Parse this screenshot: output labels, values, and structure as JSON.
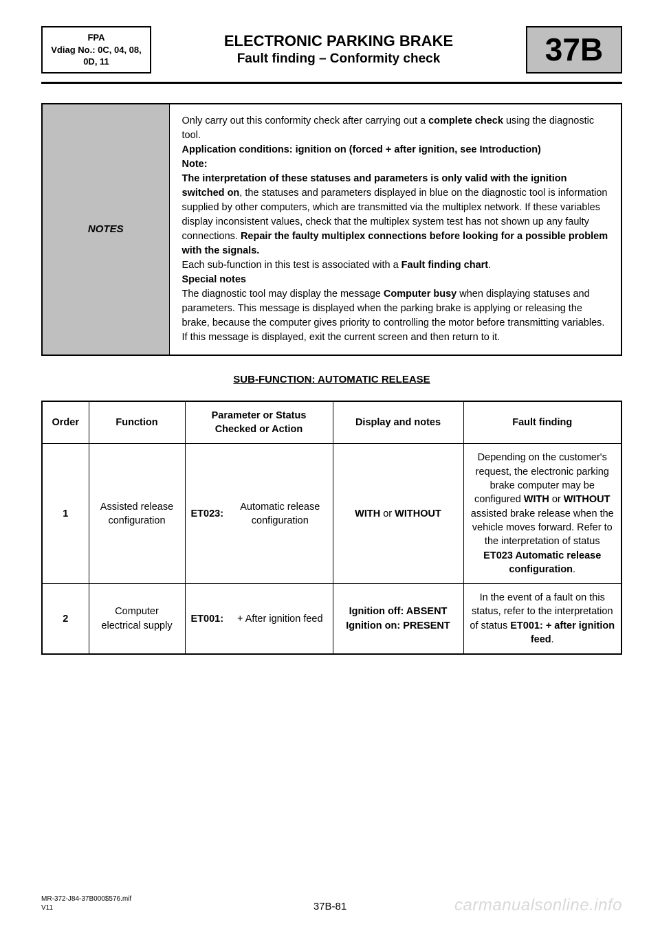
{
  "header": {
    "fpa_line1": "FPA",
    "fpa_line2": "Vdiag No.: 0C, 04, 08,",
    "fpa_line3": "0D, 11",
    "title1": "ELECTRONIC PARKING BRAKE",
    "title2": "Fault finding – Conformity check",
    "section_code": "37B"
  },
  "colors": {
    "background": "#ffffff",
    "text": "#000000",
    "box_fill": "#bfbfbf",
    "border": "#000000",
    "watermark": "#d8d8d8"
  },
  "notes": {
    "label": "NOTES",
    "p1a": "Only carry out this conformity check after carrying out a ",
    "p1b": "complete check",
    "p1c": " using the diagnostic tool.",
    "p2": "Application conditions: ignition on (forced + after ignition, see Introduction)",
    "p3": "Note:",
    "p4a": "The interpretation of these statuses and parameters is only valid with the ignition switched on",
    "p4b": ", the statuses and parameters displayed in blue on the diagnostic tool is information supplied by other computers, which are transmitted via the multiplex network. If these variables display inconsistent values, check that the multiplex system test has not shown up any faulty connections. ",
    "p4c": "Repair the faulty multiplex connections before looking for a possible problem with the signals.",
    "p5a": "Each sub-function in this test is associated with a ",
    "p5b": "Fault finding chart",
    "p5c": ".",
    "p6": "Special notes",
    "p7a": "The diagnostic tool may display the message ",
    "p7b": "Computer busy",
    "p7c": " when displaying statuses and parameters. This message is displayed when the parking brake is applying or releasing the brake, because the computer gives priority to controlling the motor before transmitting variables. If this message is displayed, exit the current screen and then return to it."
  },
  "subfunction": "SUB-FUNCTION: AUTOMATIC RELEASE",
  "table": {
    "headers": {
      "order": "Order",
      "function": "Function",
      "param": "Parameter or Status Checked or Action",
      "display": "Display and notes",
      "fault": "Fault finding"
    },
    "rows": [
      {
        "order": "1",
        "function": "Assisted release configuration",
        "param_code": "ET023:",
        "param_desc": "Automatic release configuration",
        "display_pre": "WITH",
        "display_mid": " or ",
        "display_post": "WITHOUT",
        "fault_pre": "Depending on the customer's request, the electronic parking brake computer may be configured ",
        "fault_b1": "WITH",
        "fault_m1": " or ",
        "fault_b2": "WITHOUT",
        "fault_m2": " assisted brake release when the vehicle moves forward. Refer to the interpretation of status ",
        "fault_b3": "ET023 Automatic release configuration",
        "fault_end": "."
      },
      {
        "order": "2",
        "function": "Computer electrical supply",
        "param_code": "ET001:",
        "param_desc": "+ After ignition feed",
        "display_l1a": "Ignition off: ABSENT",
        "display_l2a": "Ignition on: PRESENT",
        "fault_pre": "In the event of a fault on this status, refer to the interpretation of status ",
        "fault_b1": "ET001: + after ignition feed",
        "fault_end": "."
      }
    ]
  },
  "footer": {
    "ref": "MR-372-J84-37B000$576.mif",
    "ver": "V11",
    "page": "37B-81",
    "watermark": "carmanualsonline.info"
  }
}
